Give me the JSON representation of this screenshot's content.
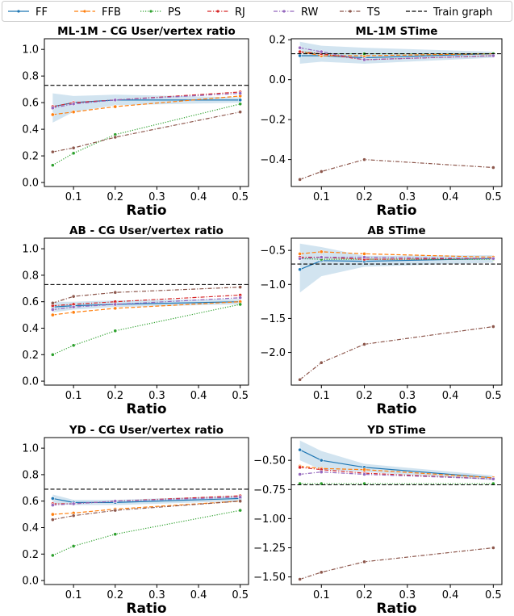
{
  "legend": {
    "placement": "top",
    "entries": [
      {
        "key": "FF",
        "label": "FF",
        "color": "#1f77b4",
        "dash": "solid"
      },
      {
        "key": "FFB",
        "label": "FFB",
        "color": "#ff7f0e",
        "dash": "dashed"
      },
      {
        "key": "PS",
        "label": "PS",
        "color": "#2ca02c",
        "dash": "dotted"
      },
      {
        "key": "RJ",
        "label": "RJ",
        "color": "#d62728",
        "dash": "dashdot"
      },
      {
        "key": "RW",
        "label": "RW",
        "color": "#9467bd",
        "dash": "dashdot"
      },
      {
        "key": "TS",
        "label": "TS",
        "color": "#8c564b",
        "dash": "dashdot"
      },
      {
        "key": "TG",
        "label": "Train graph",
        "color": "#000000",
        "dash": "dashed"
      }
    ]
  },
  "chart_data": [
    {
      "type": "line",
      "title": "ML-1M - CG User/vertex ratio",
      "xlabel": "Ratio",
      "ylabel": "",
      "x": [
        0.05,
        0.1,
        0.2,
        0.5
      ],
      "xlim": [
        0.03,
        0.52
      ],
      "ylim": [
        -0.03,
        1.08
      ],
      "xticks": [
        0.1,
        0.2,
        0.3,
        0.4,
        0.5
      ],
      "yticks": [
        0.0,
        0.2,
        0.4,
        0.6,
        0.8,
        1.0
      ],
      "tick_labels_x": [
        "0.1",
        "0.2",
        "0.3",
        "0.4",
        "0.5"
      ],
      "tick_labels_y": [
        "0.0",
        "0.2",
        "0.4",
        "0.6",
        "0.8",
        "1.0"
      ],
      "reference_line": {
        "series": "Train graph",
        "y": 0.73
      },
      "series": [
        {
          "name": "FF",
          "values": [
            0.57,
            0.6,
            0.62,
            0.62
          ],
          "band": [
            [
              0.45,
              0.67
            ],
            [
              0.53,
              0.65
            ],
            [
              0.58,
              0.66
            ],
            [
              0.6,
              0.64
            ]
          ]
        },
        {
          "name": "FFB",
          "values": [
            0.51,
            0.53,
            0.57,
            0.65
          ]
        },
        {
          "name": "PS",
          "values": [
            0.13,
            0.22,
            0.36,
            0.59
          ]
        },
        {
          "name": "RJ",
          "values": [
            0.57,
            0.6,
            0.62,
            0.68
          ]
        },
        {
          "name": "RW",
          "values": [
            0.56,
            0.59,
            0.62,
            0.67
          ]
        },
        {
          "name": "TS",
          "values": [
            0.23,
            0.26,
            0.34,
            0.53
          ]
        }
      ]
    },
    {
      "type": "line",
      "title": "ML-1M STime",
      "xlabel": "Ratio",
      "ylabel": "",
      "x": [
        0.05,
        0.1,
        0.2,
        0.5
      ],
      "xlim": [
        0.03,
        0.52
      ],
      "ylim": [
        -0.535,
        0.205
      ],
      "xticks": [
        0.1,
        0.2,
        0.3,
        0.4,
        0.5
      ],
      "yticks": [
        -0.4,
        -0.2,
        0.0,
        0.2
      ],
      "tick_labels_x": [
        "0.1",
        "0.2",
        "0.3",
        "0.4",
        "0.5"
      ],
      "tick_labels_y": [
        "−0.4",
        "−0.2",
        "0.0",
        "0.2"
      ],
      "reference_line": {
        "series": "Train graph",
        "y": 0.13
      },
      "series": [
        {
          "name": "FF",
          "values": [
            0.12,
            0.12,
            0.11,
            0.13
          ],
          "band": [
            [
              0.08,
              0.19
            ],
            [
              0.09,
              0.17
            ],
            [
              0.08,
              0.16
            ],
            [
              0.11,
              0.14
            ]
          ]
        },
        {
          "name": "FFB",
          "values": [
            0.14,
            0.12,
            0.12,
            0.13
          ]
        },
        {
          "name": "PS",
          "values": [
            0.14,
            0.13,
            0.13,
            0.13
          ]
        },
        {
          "name": "RJ",
          "values": [
            0.14,
            0.13,
            0.1,
            0.12
          ]
        },
        {
          "name": "RW",
          "values": [
            0.16,
            0.14,
            0.1,
            0.12
          ]
        },
        {
          "name": "TS",
          "values": [
            -0.5,
            -0.46,
            -0.4,
            -0.44
          ]
        }
      ]
    },
    {
      "type": "line",
      "title": "AB - CG User/vertex ratio",
      "xlabel": "Ratio",
      "ylabel": "",
      "x": [
        0.05,
        0.1,
        0.2,
        0.5
      ],
      "xlim": [
        0.03,
        0.52
      ],
      "ylim": [
        -0.03,
        1.08
      ],
      "xticks": [
        0.1,
        0.2,
        0.3,
        0.4,
        0.5
      ],
      "yticks": [
        0.0,
        0.2,
        0.4,
        0.6,
        0.8,
        1.0
      ],
      "tick_labels_x": [
        "0.1",
        "0.2",
        "0.3",
        "0.4",
        "0.5"
      ],
      "tick_labels_y": [
        "0.0",
        "0.2",
        "0.4",
        "0.6",
        "0.8",
        "1.0"
      ],
      "reference_line": {
        "series": "Train graph",
        "y": 0.73
      },
      "series": [
        {
          "name": "FF",
          "values": [
            0.56,
            0.57,
            0.58,
            0.6
          ],
          "band": [
            [
              0.52,
              0.6
            ],
            [
              0.54,
              0.6
            ],
            [
              0.56,
              0.61
            ],
            [
              0.58,
              0.62
            ]
          ]
        },
        {
          "name": "FFB",
          "values": [
            0.5,
            0.52,
            0.55,
            0.6
          ]
        },
        {
          "name": "PS",
          "values": [
            0.2,
            0.27,
            0.38,
            0.58
          ]
        },
        {
          "name": "RJ",
          "values": [
            0.57,
            0.58,
            0.6,
            0.65
          ]
        },
        {
          "name": "RW",
          "values": [
            0.54,
            0.56,
            0.58,
            0.63
          ]
        },
        {
          "name": "TS",
          "values": [
            0.59,
            0.64,
            0.67,
            0.71
          ]
        }
      ]
    },
    {
      "type": "line",
      "title": "AB STime",
      "xlabel": "Ratio",
      "ylabel": "",
      "x": [
        0.05,
        0.1,
        0.2,
        0.5
      ],
      "xlim": [
        0.03,
        0.52
      ],
      "ylim": [
        -2.48,
        -0.32
      ],
      "xticks": [
        0.1,
        0.2,
        0.3,
        0.4,
        0.5
      ],
      "yticks": [
        -2.0,
        -1.5,
        -1.0,
        -0.5
      ],
      "tick_labels_x": [
        "0.1",
        "0.2",
        "0.3",
        "0.4",
        "0.5"
      ],
      "tick_labels_y": [
        "−2.0",
        "−1.5",
        "−1.0",
        "−0.5"
      ],
      "reference_line": {
        "series": "Train graph",
        "y": -0.7
      },
      "series": [
        {
          "name": "FF",
          "values": [
            -0.78,
            -0.65,
            -0.66,
            -0.62
          ],
          "band": [
            [
              -1.12,
              -0.4
            ],
            [
              -0.88,
              -0.45
            ],
            [
              -0.74,
              -0.58
            ],
            [
              -0.68,
              -0.57
            ]
          ]
        },
        {
          "name": "FFB",
          "values": [
            -0.55,
            -0.52,
            -0.55,
            -0.6
          ]
        },
        {
          "name": "PS",
          "values": [
            -0.62,
            -0.63,
            -0.63,
            -0.63
          ]
        },
        {
          "name": "RJ",
          "values": [
            -0.6,
            -0.6,
            -0.63,
            -0.62
          ]
        },
        {
          "name": "RW",
          "values": [
            -0.62,
            -0.6,
            -0.6,
            -0.62
          ]
        },
        {
          "name": "TS",
          "values": [
            -2.4,
            -2.15,
            -1.88,
            -1.62
          ]
        }
      ]
    },
    {
      "type": "line",
      "title": "YD - CG User/vertex ratio",
      "xlabel": "Ratio",
      "ylabel": "",
      "x": [
        0.05,
        0.1,
        0.2,
        0.5
      ],
      "xlim": [
        0.03,
        0.52
      ],
      "ylim": [
        -0.03,
        1.08
      ],
      "xticks": [
        0.1,
        0.2,
        0.3,
        0.4,
        0.5
      ],
      "yticks": [
        0.0,
        0.2,
        0.4,
        0.6,
        0.8,
        1.0
      ],
      "tick_labels_x": [
        "0.1",
        "0.2",
        "0.3",
        "0.4",
        "0.5"
      ],
      "tick_labels_y": [
        "0.0",
        "0.2",
        "0.4",
        "0.6",
        "0.8",
        "1.0"
      ],
      "reference_line": {
        "series": "Train graph",
        "y": 0.69
      },
      "series": [
        {
          "name": "FF",
          "values": [
            0.62,
            0.59,
            0.59,
            0.62
          ],
          "band": [
            [
              0.58,
              0.65
            ],
            [
              0.57,
              0.61
            ],
            [
              0.57,
              0.61
            ],
            [
              0.6,
              0.64
            ]
          ]
        },
        {
          "name": "FFB",
          "values": [
            0.5,
            0.51,
            0.54,
            0.6
          ]
        },
        {
          "name": "PS",
          "values": [
            0.19,
            0.26,
            0.35,
            0.53
          ]
        },
        {
          "name": "RJ",
          "values": [
            0.58,
            0.58,
            0.6,
            0.64
          ]
        },
        {
          "name": "RW",
          "values": [
            0.57,
            0.58,
            0.6,
            0.63
          ]
        },
        {
          "name": "TS",
          "values": [
            0.46,
            0.49,
            0.53,
            0.6
          ]
        }
      ]
    },
    {
      "type": "line",
      "title": "YD STime",
      "xlabel": "Ratio",
      "ylabel": "",
      "x": [
        0.05,
        0.1,
        0.2,
        0.5
      ],
      "xlim": [
        0.03,
        0.52
      ],
      "ylim": [
        -1.565,
        -0.305
      ],
      "xticks": [
        0.1,
        0.2,
        0.3,
        0.4,
        0.5
      ],
      "yticks": [
        -1.5,
        -1.25,
        -1.0,
        -0.75,
        -0.5
      ],
      "tick_labels_x": [
        "0.1",
        "0.2",
        "0.3",
        "0.4",
        "0.5"
      ],
      "tick_labels_y": [
        "−1.50",
        "−1.25",
        "−1.00",
        "−0.75",
        "−0.50"
      ],
      "reference_line": {
        "series": "Train graph",
        "y": -0.71
      },
      "series": [
        {
          "name": "FF",
          "values": [
            -0.41,
            -0.5,
            -0.56,
            -0.65
          ],
          "band": [
            [
              -0.5,
              -0.33
            ],
            [
              -0.58,
              -0.42
            ],
            [
              -0.6,
              -0.53
            ],
            [
              -0.67,
              -0.63
            ]
          ]
        },
        {
          "name": "FFB",
          "values": [
            -0.55,
            -0.57,
            -0.58,
            -0.65
          ]
        },
        {
          "name": "PS",
          "values": [
            -0.7,
            -0.7,
            -0.7,
            -0.7
          ]
        },
        {
          "name": "RJ",
          "values": [
            -0.56,
            -0.58,
            -0.61,
            -0.66
          ]
        },
        {
          "name": "RW",
          "values": [
            -0.62,
            -0.6,
            -0.62,
            -0.66
          ]
        },
        {
          "name": "TS",
          "values": [
            -1.52,
            -1.46,
            -1.37,
            -1.25
          ]
        }
      ]
    }
  ]
}
